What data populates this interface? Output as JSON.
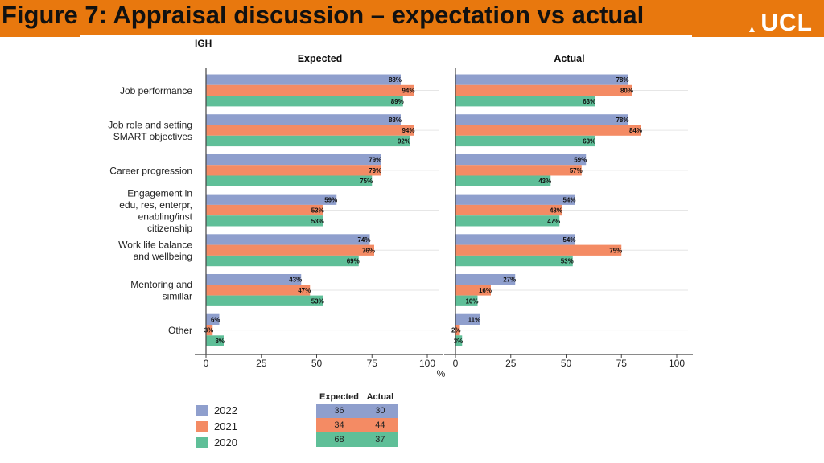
{
  "header": {
    "title": "Figure 7: Appraisal discussion – expectation vs actual",
    "logo_text": "UCL",
    "logo_icon": "ucl-dome-icon"
  },
  "colors": {
    "header_bg": "#e8780e",
    "y2022": "#8f9fcd",
    "y2021": "#f48b64",
    "y2020": "#5fbf98",
    "axis": "#444444"
  },
  "chart_data": {
    "type": "bar",
    "orientation": "horizontal",
    "group_label": "IGH",
    "unit_label": "%",
    "categories": [
      [
        "Job performance"
      ],
      [
        "Job role and setting",
        "SMART objectives"
      ],
      [
        "Career progression"
      ],
      [
        "Engagement in",
        "edu, res, enterpr,",
        "enabling/inst",
        "citizenship"
      ],
      [
        "Work life balance",
        "and wellbeing"
      ],
      [
        "Mentoring and",
        "simillar"
      ],
      [
        "Other"
      ]
    ],
    "xlim": [
      0,
      100
    ],
    "xticks": [
      0,
      25,
      50,
      75,
      100
    ],
    "panels": [
      {
        "title": "Expected",
        "series": [
          {
            "name": "2022",
            "values": [
              88,
              88,
              79,
              59,
              74,
              43,
              6
            ]
          },
          {
            "name": "2021",
            "values": [
              94,
              94,
              79,
              53,
              76,
              47,
              3
            ]
          },
          {
            "name": "2020",
            "values": [
              89,
              92,
              75,
              53,
              69,
              53,
              8
            ]
          }
        ]
      },
      {
        "title": "Actual",
        "series": [
          {
            "name": "2022",
            "values": [
              78,
              78,
              59,
              54,
              54,
              27,
              11
            ]
          },
          {
            "name": "2021",
            "values": [
              80,
              84,
              57,
              48,
              75,
              16,
              2
            ]
          },
          {
            "name": "2020",
            "values": [
              63,
              63,
              43,
              47,
              53,
              10,
              3
            ]
          }
        ]
      }
    ],
    "legend": [
      {
        "name": "2022",
        "color": "#8f9fcd"
      },
      {
        "name": "2021",
        "color": "#f48b64"
      },
      {
        "name": "2020",
        "color": "#5fbf98"
      }
    ],
    "n_table": {
      "headers": [
        "Expected",
        "Actual"
      ],
      "rows": [
        {
          "year": "2022",
          "expected": "36",
          "actual": "30"
        },
        {
          "year": "2021",
          "expected": "34",
          "actual": "44"
        },
        {
          "year": "2020",
          "expected": "68",
          "actual": "37"
        }
      ]
    }
  }
}
